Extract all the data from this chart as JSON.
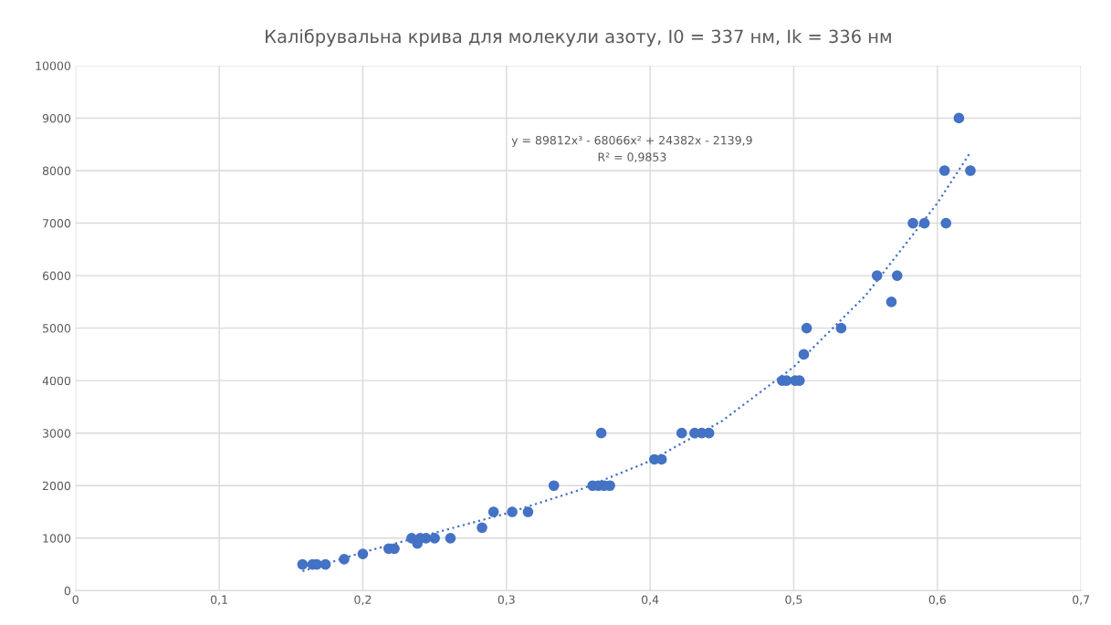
{
  "chart_data": {
    "type": "scatter",
    "title": "Калібрувальна крива для молекули азоту, I0 = 337 нм, Ik = 336 нм",
    "grid": true,
    "legend": false,
    "marker": "circle",
    "xlim": [
      0,
      0.7
    ],
    "xticks": [
      0,
      {
        "value": 0.1,
        "label": "0,1"
      },
      {
        "value": 0.2,
        "label": "0,2"
      },
      {
        "value": 0.3,
        "label": "0,3"
      },
      {
        "value": 0.4,
        "label": "0,4"
      },
      {
        "value": 0.5,
        "label": "0,5"
      },
      {
        "value": 0.6,
        "label": "0,6"
      },
      {
        "value": 0.7,
        "label": "0,7"
      }
    ],
    "ylim": [
      0,
      10000
    ],
    "yticks": [
      0,
      1000,
      2000,
      3000,
      4000,
      5000,
      6000,
      7000,
      8000,
      9000,
      10000
    ],
    "annotations": [
      "y = 89812x³ - 68066x² + 24382x - 2139,9",
      "R² = 0,9853"
    ],
    "series": [
      {
        "color": "#4472c4",
        "x": [
          0.158,
          0.165,
          0.168,
          0.174,
          0.187,
          0.2,
          0.218,
          0.222,
          0.234,
          0.238,
          0.24,
          0.244,
          0.25,
          0.261,
          0.283,
          0.291,
          0.304,
          0.315,
          0.333,
          0.36,
          0.364,
          0.368,
          0.372,
          0.366,
          0.403,
          0.408,
          0.422,
          0.431,
          0.436,
          0.441,
          0.492,
          0.495,
          0.501,
          0.504,
          0.507,
          0.509,
          0.533,
          0.558,
          0.568,
          0.572,
          0.583,
          0.591,
          0.605,
          0.606,
          0.615,
          0.623
        ],
        "values": [
          500,
          500,
          500,
          500,
          600,
          700,
          800,
          800,
          1000,
          900,
          1000,
          1000,
          1000,
          1000,
          1200,
          1500,
          1500,
          1500,
          2000,
          2000,
          2000,
          2000,
          2000,
          3000,
          2500,
          2500,
          3000,
          3000,
          3000,
          3000,
          4000,
          4000,
          4000,
          4000,
          4500,
          5000,
          5000,
          6000,
          5500,
          6000,
          7000,
          7000,
          8000,
          7000,
          9000,
          8000
        ]
      },
      {
        "type": "line",
        "color": "#4472c4",
        "line_style": "dotted",
        "marker": "none",
        "x": [
          0.158,
          0.2,
          0.25,
          0.3,
          0.35,
          0.4,
          0.45,
          0.5,
          0.55,
          0.6,
          0.623
        ],
        "values": [
          370,
          730,
          1100,
          1470,
          1910,
          2470,
          3230,
          4260,
          5620,
          7380,
          8350
        ]
      }
    ]
  }
}
